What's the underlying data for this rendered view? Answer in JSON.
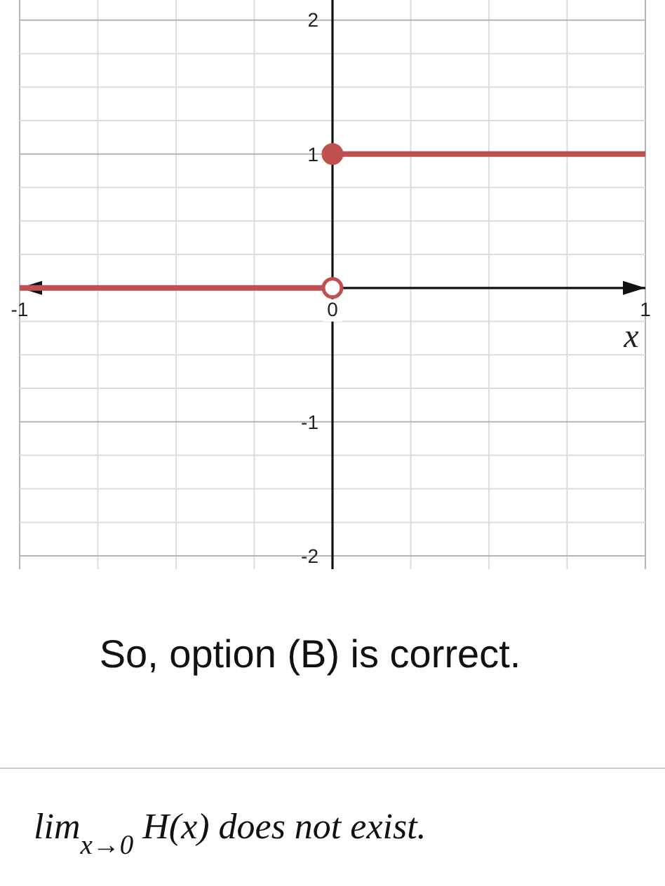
{
  "chart_data": {
    "type": "line",
    "xlabel": "x",
    "xlim": [
      -1,
      1
    ],
    "xticks": [
      -1,
      {
        "value": -0.75,
        "label": null
      },
      {
        "value": -0.5,
        "label": null
      },
      {
        "value": -0.25,
        "label": null
      },
      0,
      {
        "value": 0.25,
        "label": null
      },
      {
        "value": 0.5,
        "label": null
      },
      {
        "value": 0.75,
        "label": null
      },
      1
    ],
    "ylim": [
      -2.1,
      2.15
    ],
    "yticks": [
      -2,
      {
        "value": -1.75,
        "label": null
      },
      {
        "value": -1.5,
        "label": null
      },
      {
        "value": -1.25,
        "label": null
      },
      -1,
      {
        "value": -0.75,
        "label": null
      },
      {
        "value": -0.5,
        "label": null
      },
      {
        "value": -0.25,
        "label": null
      },
      {
        "value": 0.25,
        "label": null
      },
      {
        "value": 0.5,
        "label": null
      },
      {
        "value": 0.75,
        "label": null
      },
      1,
      {
        "value": 1.25,
        "label": null
      },
      {
        "value": 1.5,
        "label": null
      },
      {
        "value": 1.75,
        "label": null
      },
      2
    ],
    "grid": true,
    "series": [
      {
        "color": "#c0504d",
        "x": [
          -1,
          0
        ],
        "values": [
          0,
          0
        ]
      },
      {
        "color": "#c0504d",
        "x": [
          0,
          1
        ],
        "values": [
          1,
          1
        ]
      },
      {
        "type": "scatter",
        "marker": "circle",
        "color": "#c0504d",
        "x": [
          0,
          0
        ],
        "values": [
          1,
          0
        ],
        "colors": [
          "#c0504d",
          "#ffffff"
        ]
      }
    ],
    "annotations": [
      "So, option (B) is correct.",
      "lim$_{x→0}$ H(x) does not exist."
    ]
  }
}
